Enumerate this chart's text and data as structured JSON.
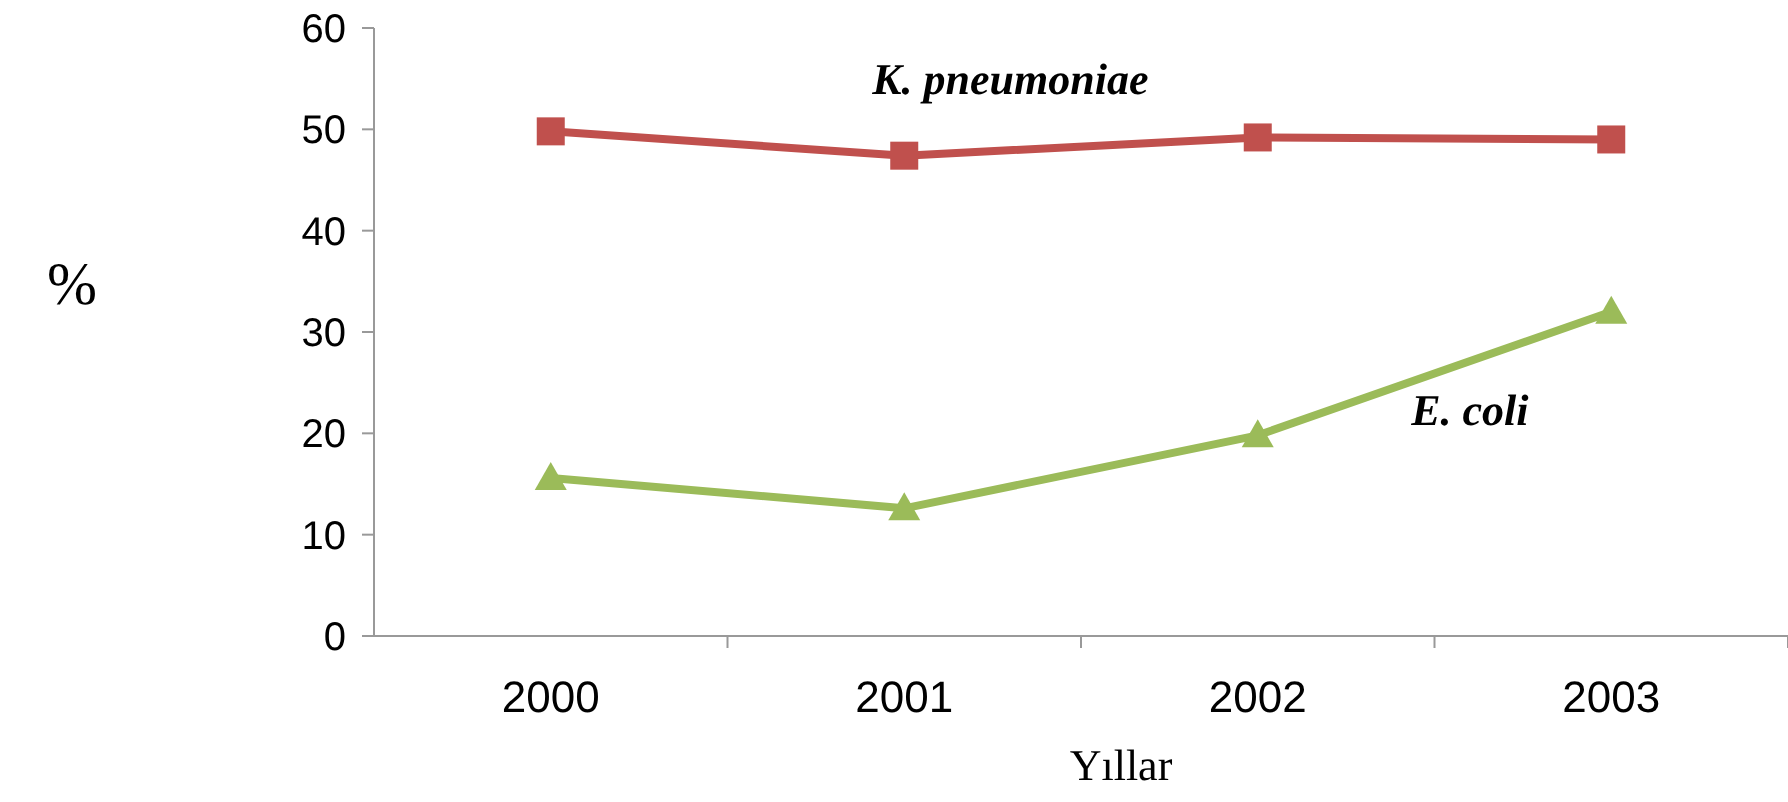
{
  "chart_data": {
    "type": "line",
    "xlabel": "Yıllar",
    "ylabel": "%",
    "categories": [
      "2000",
      "2001",
      "2002",
      "2003"
    ],
    "series": [
      {
        "name": "K. pneumoniae",
        "color": "#c0504d",
        "marker": "square",
        "values": [
          49.8,
          47.4,
          49.2,
          49.0
        ]
      },
      {
        "name": "E. coli",
        "color": "#9bbb59",
        "marker": "triangle",
        "values": [
          15.6,
          12.6,
          19.8,
          32.0
        ]
      }
    ],
    "ylim": [
      0,
      60
    ],
    "yticks": [
      0,
      10,
      20,
      30,
      40,
      50,
      60
    ],
    "grid": false
  }
}
